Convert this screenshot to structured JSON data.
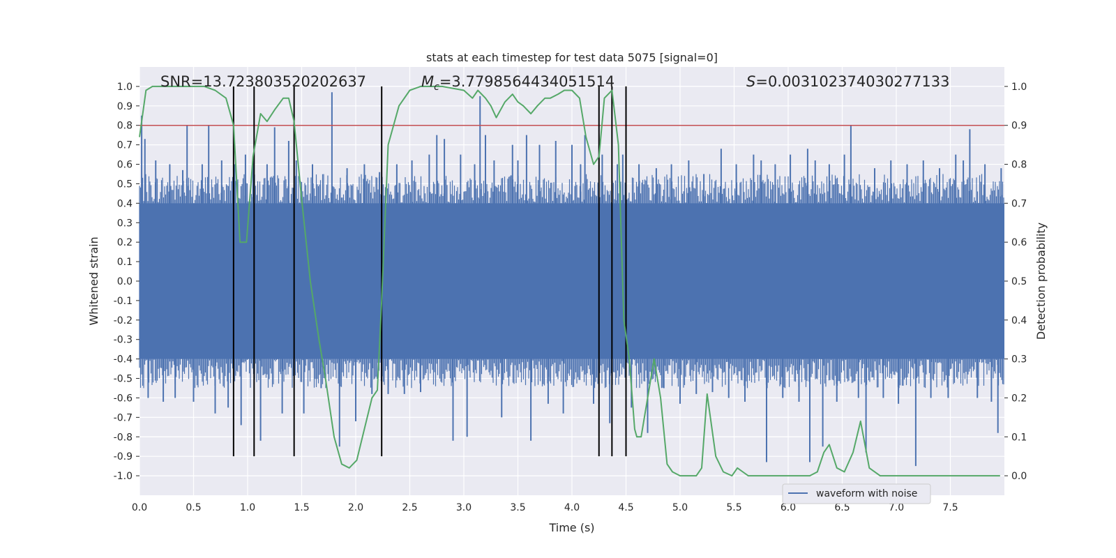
{
  "chart_data": {
    "type": "line",
    "title": "stats at each timestep for test data 5075 [signal=0]",
    "xlabel": "Time (s)",
    "ylabel": "Whitened strain",
    "y2label": "Detection probability",
    "xlim": [
      0.0,
      8.0
    ],
    "ylim": [
      -1.1,
      1.1
    ],
    "y2lim": [
      -0.05,
      1.05
    ],
    "grid": true,
    "x_ticks": [
      "0.0",
      "0.5",
      "1.0",
      "1.5",
      "2.0",
      "2.5",
      "3.0",
      "3.5",
      "4.0",
      "4.5",
      "5.0",
      "5.5",
      "6.0",
      "6.5",
      "7.0",
      "7.5"
    ],
    "y_ticks": [
      "1.0",
      "0.9",
      "0.8",
      "0.7",
      "0.6",
      "0.5",
      "0.4",
      "0.3",
      "0.2",
      "0.1",
      "0.0",
      "-0.1",
      "-0.2",
      "-0.3",
      "-0.4",
      "-0.5",
      "-0.6",
      "-0.7",
      "-0.8",
      "-0.9",
      "-1.0"
    ],
    "y2_ticks": [
      "1.0",
      "0.9",
      "0.8",
      "0.7",
      "0.6",
      "0.5",
      "0.4",
      "0.3",
      "0.2",
      "0.1",
      "0.0"
    ],
    "annotations": {
      "snr": "SNR=13.723803520202637",
      "mc_symbol": "M",
      "mc_sub": "c",
      "mc_value": "=3.7798564434051514",
      "s_symbol": "S",
      "s_value": "=0.003102374030277133"
    },
    "legend": {
      "placement": "bottom-right",
      "entries": [
        "waveform with noise"
      ]
    },
    "threshold": {
      "axis": "left",
      "value": 0.8,
      "color": "#c44e52"
    },
    "vertical_markers_x": [
      0.87,
      1.06,
      1.43,
      2.24,
      4.25,
      4.37,
      4.5
    ],
    "waveform": {
      "name": "waveform with noise",
      "color": "#4c72b0",
      "duration_s": 8.0,
      "dense_band": [
        -0.4,
        0.4
      ],
      "spikes": [
        [
          0.02,
          0.85
        ],
        [
          0.05,
          0.73
        ],
        [
          0.08,
          -0.6
        ],
        [
          0.15,
          0.62
        ],
        [
          0.22,
          -0.62
        ],
        [
          0.28,
          0.6
        ],
        [
          0.33,
          -0.6
        ],
        [
          0.4,
          0.57
        ],
        [
          0.44,
          0.8
        ],
        [
          0.5,
          -0.62
        ],
        [
          0.58,
          0.6
        ],
        [
          0.64,
          0.8
        ],
        [
          0.7,
          -0.68
        ],
        [
          0.76,
          0.62
        ],
        [
          0.82,
          -0.65
        ],
        [
          0.88,
          0.6
        ],
        [
          0.94,
          -0.74
        ],
        [
          0.98,
          0.65
        ],
        [
          1.05,
          0.62
        ],
        [
          1.12,
          -0.82
        ],
        [
          1.18,
          0.6
        ],
        [
          1.25,
          0.79
        ],
        [
          1.32,
          -0.68
        ],
        [
          1.38,
          0.72
        ],
        [
          1.45,
          0.62
        ],
        [
          1.52,
          -0.68
        ],
        [
          1.6,
          0.6
        ],
        [
          1.68,
          -0.55
        ],
        [
          1.78,
          0.97
        ],
        [
          1.85,
          -0.85
        ],
        [
          1.92,
          0.58
        ],
        [
          2.0,
          -0.72
        ],
        [
          2.08,
          0.6
        ],
        [
          2.15,
          -0.58
        ],
        [
          2.22,
          0.56
        ],
        [
          2.3,
          -0.58
        ],
        [
          2.38,
          0.6
        ],
        [
          2.45,
          -0.58
        ],
        [
          2.52,
          0.62
        ],
        [
          2.6,
          -0.57
        ],
        [
          2.68,
          0.65
        ],
        [
          2.75,
          0.75
        ],
        [
          2.82,
          0.73
        ],
        [
          2.9,
          -0.82
        ],
        [
          2.97,
          0.65
        ],
        [
          3.03,
          -0.8
        ],
        [
          3.1,
          0.6
        ],
        [
          3.15,
          0.95
        ],
        [
          3.2,
          0.75
        ],
        [
          3.28,
          0.62
        ],
        [
          3.35,
          -0.7
        ],
        [
          3.45,
          0.7
        ],
        [
          3.5,
          0.62
        ],
        [
          3.58,
          0.75
        ],
        [
          3.62,
          -0.82
        ],
        [
          3.7,
          0.7
        ],
        [
          3.78,
          -0.63
        ],
        [
          3.85,
          0.72
        ],
        [
          3.92,
          -0.68
        ],
        [
          4.0,
          0.7
        ],
        [
          4.08,
          0.6
        ],
        [
          4.12,
          0.75
        ],
        [
          4.2,
          -0.63
        ],
        [
          4.28,
          0.65
        ],
        [
          4.35,
          -0.73
        ],
        [
          4.42,
          0.6
        ],
        [
          4.47,
          0.65
        ],
        [
          4.55,
          -0.65
        ],
        [
          4.62,
          0.6
        ],
        [
          4.7,
          -0.78
        ],
        [
          4.78,
          0.58
        ],
        [
          4.85,
          -0.55
        ],
        [
          4.92,
          0.6
        ],
        [
          5.0,
          -0.63
        ],
        [
          5.08,
          0.62
        ],
        [
          5.15,
          -0.58
        ],
        [
          5.22,
          0.55
        ],
        [
          5.3,
          -0.57
        ],
        [
          5.38,
          0.68
        ],
        [
          5.45,
          -0.6
        ],
        [
          5.52,
          0.6
        ],
        [
          5.6,
          -0.62
        ],
        [
          5.68,
          0.65
        ],
        [
          5.75,
          0.62
        ],
        [
          5.8,
          -0.93
        ],
        [
          5.88,
          0.6
        ],
        [
          5.95,
          -0.6
        ],
        [
          6.02,
          0.65
        ],
        [
          6.1,
          -0.62
        ],
        [
          6.18,
          0.68
        ],
        [
          6.2,
          -0.93
        ],
        [
          6.25,
          0.62
        ],
        [
          6.32,
          -0.85
        ],
        [
          6.38,
          0.6
        ],
        [
          6.45,
          -0.62
        ],
        [
          6.52,
          0.65
        ],
        [
          6.58,
          0.8
        ],
        [
          6.65,
          -0.6
        ],
        [
          6.72,
          -0.88
        ],
        [
          6.8,
          0.58
        ],
        [
          6.88,
          -0.6
        ],
        [
          6.95,
          0.62
        ],
        [
          7.02,
          -0.63
        ],
        [
          7.1,
          0.6
        ],
        [
          7.18,
          -0.95
        ],
        [
          7.25,
          0.62
        ],
        [
          7.32,
          -0.6
        ],
        [
          7.4,
          0.58
        ],
        [
          7.48,
          -0.6
        ],
        [
          7.55,
          0.65
        ],
        [
          7.62,
          0.62
        ],
        [
          7.68,
          0.78
        ],
        [
          7.75,
          -0.6
        ],
        [
          7.82,
          0.6
        ],
        [
          7.88,
          -0.62
        ],
        [
          7.94,
          -0.78
        ],
        [
          7.97,
          0.58
        ]
      ]
    },
    "detection_probability": {
      "color": "#55a868",
      "x": [
        0.0,
        0.06,
        0.12,
        0.2,
        0.3,
        0.4,
        0.5,
        0.6,
        0.7,
        0.8,
        0.87,
        0.93,
        0.99,
        1.05,
        1.12,
        1.18,
        1.25,
        1.33,
        1.38,
        1.43,
        1.5,
        1.58,
        1.66,
        1.72,
        1.8,
        1.87,
        1.94,
        2.01,
        2.08,
        2.15,
        2.2,
        2.24,
        2.3,
        2.4,
        2.5,
        2.6,
        2.8,
        3.0,
        3.08,
        3.13,
        3.2,
        3.25,
        3.3,
        3.38,
        3.45,
        3.5,
        3.55,
        3.62,
        3.68,
        3.75,
        3.8,
        3.87,
        3.93,
        4.0,
        4.07,
        4.13,
        4.2,
        4.25,
        4.3,
        4.37,
        4.43,
        4.48,
        4.53,
        4.58,
        4.6,
        4.64,
        4.7,
        4.76,
        4.82,
        4.88,
        4.93,
        5.0,
        5.08,
        5.15,
        5.2,
        5.25,
        5.33,
        5.4,
        5.48,
        5.53,
        5.58,
        5.63,
        5.7,
        5.8,
        6.0,
        6.2,
        6.27,
        6.33,
        6.38,
        6.45,
        6.52,
        6.6,
        6.67,
        6.75,
        6.85,
        7.0,
        7.2,
        7.5,
        7.7,
        7.96
      ],
      "y": [
        0.87,
        0.99,
        1.0,
        1.0,
        1.0,
        1.0,
        1.0,
        1.0,
        0.99,
        0.97,
        0.9,
        0.6,
        0.6,
        0.82,
        0.93,
        0.91,
        0.94,
        0.97,
        0.97,
        0.91,
        0.71,
        0.5,
        0.35,
        0.25,
        0.1,
        0.03,
        0.02,
        0.04,
        0.12,
        0.2,
        0.22,
        0.45,
        0.85,
        0.95,
        0.99,
        1.0,
        1.0,
        0.99,
        0.97,
        0.99,
        0.97,
        0.95,
        0.92,
        0.96,
        0.98,
        0.96,
        0.95,
        0.93,
        0.95,
        0.97,
        0.97,
        0.98,
        0.99,
        0.99,
        0.97,
        0.87,
        0.8,
        0.82,
        0.97,
        0.99,
        0.85,
        0.4,
        0.3,
        0.12,
        0.1,
        0.1,
        0.2,
        0.3,
        0.2,
        0.03,
        0.01,
        0.0,
        0.0,
        0.0,
        0.02,
        0.21,
        0.05,
        0.01,
        0.0,
        0.02,
        0.01,
        0.0,
        0.0,
        0.0,
        0.0,
        0.0,
        0.01,
        0.06,
        0.08,
        0.02,
        0.01,
        0.06,
        0.14,
        0.02,
        0.0,
        0.0,
        0.0,
        0.0,
        0.0,
        0.0
      ]
    }
  }
}
